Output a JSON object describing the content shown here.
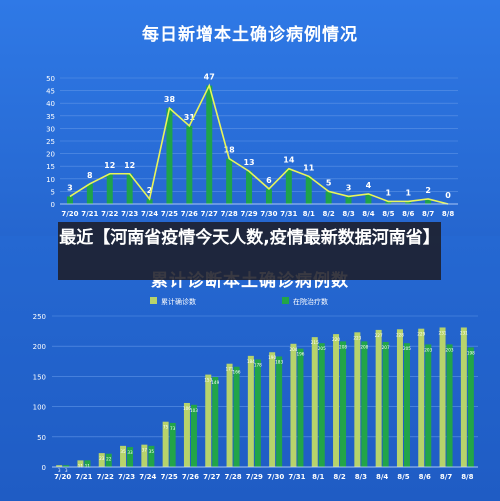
{
  "headline": "最近【河南省疫情今天人数,疫情最新数据河南省】",
  "colors": {
    "bar_green": "#1fa34a",
    "line_yellow": "#e8f55a",
    "bar_cumulative": "#b7d36b",
    "bar_inhospital": "#22a548",
    "axis_text": "#ffffff",
    "grid": "#5d93e6"
  },
  "chart_data": [
    {
      "type": "bar",
      "title": "每日新增本土确诊病例情况",
      "categories": [
        "7/20",
        "7/21",
        "7/22",
        "7/23",
        "7/24",
        "7/25",
        "7/26",
        "7/27",
        "7/28",
        "7/29",
        "7/30",
        "7/31",
        "8/1",
        "8/2",
        "8/3",
        "8/4",
        "8/5",
        "8/6",
        "8/7",
        "8/8"
      ],
      "values": [
        3,
        8,
        12,
        12,
        2,
        38,
        31,
        47,
        18,
        13,
        6,
        14,
        11,
        5,
        3,
        4,
        1,
        1,
        2,
        0
      ],
      "line_overlay": true,
      "ylim": [
        0,
        50
      ],
      "yticks": [
        0,
        5,
        10,
        15,
        20,
        25,
        30,
        35,
        40,
        45,
        50
      ],
      "grid": true
    },
    {
      "type": "bar",
      "title": "累计诊断本土确诊病例数",
      "categories": [
        "7/20",
        "7/21",
        "7/22",
        "7/23",
        "7/24",
        "7/25",
        "7/26",
        "7/27",
        "7/28",
        "7/29",
        "7/30",
        "7/31",
        "8/1",
        "8/2",
        "8/3",
        "8/4",
        "8/5",
        "8/6",
        "8/7",
        "8/8"
      ],
      "series": [
        {
          "name": "累计确诊数",
          "values": [
            3,
            11,
            23,
            35,
            37,
            75,
            106,
            153,
            171,
            184,
            190,
            204,
            215,
            220,
            223,
            227,
            228,
            229,
            231,
            231
          ]
        },
        {
          "name": "在院治疗数",
          "values": [
            3,
            11,
            22,
            33,
            35,
            73,
            103,
            149,
            166,
            178,
            183,
            196,
            205,
            208,
            208,
            207,
            205,
            203,
            203,
            198
          ]
        }
      ],
      "legend": "top-center",
      "ylim": [
        0,
        250
      ],
      "yticks": [
        0,
        50,
        100,
        150,
        200,
        250
      ],
      "grid": true
    }
  ]
}
